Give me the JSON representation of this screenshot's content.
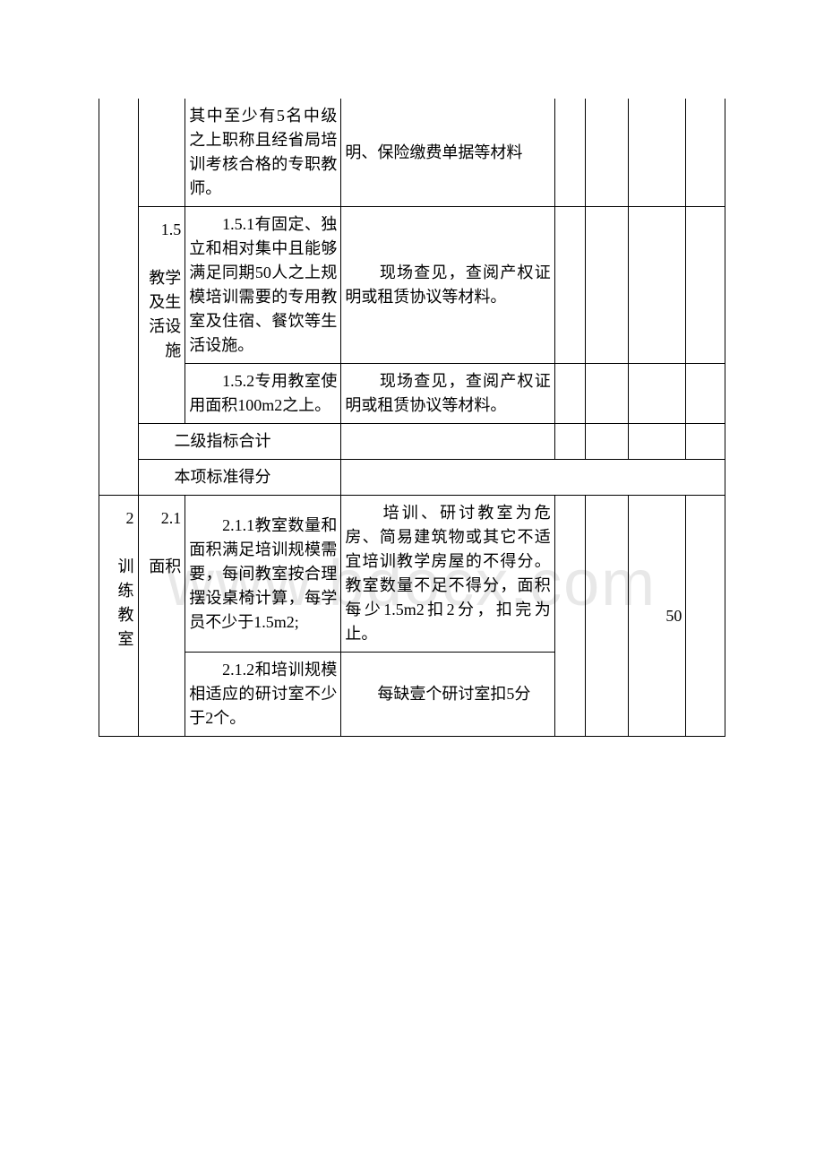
{
  "watermark": "www.bdocx.com",
  "rows": {
    "r1": {
      "c3": "其中至少有5名中级之上职称且经省局培训考核合格的专职教师。",
      "c4": "明、保险缴费单据等材料"
    },
    "r2": {
      "c2_label": "1.5\n　　教学及生活设施",
      "c3": "　　1.5.1有固定、独立和相对集中且能够满足同期50人之上规模培训需要的专用教室及住宿、餐饮等生活设施。",
      "c4": "　　现场查见，查阅产权证明或租赁协议等材料。"
    },
    "r3": {
      "c3": "　　1.5.2专用教室使用面积100m2之上。",
      "c4": "　　现场查见，查阅产权证明或租赁协议等材料。"
    },
    "r4": {
      "label": "　　二级指标合计"
    },
    "r5": {
      "label": "　　本项标准得分"
    },
    "r6": {
      "c1": "2\n　　训练教室",
      "c2": "2.1\n　　面积",
      "c3": "　　2.1.1教室数量和面积满足培训规模需要，每间教室按合理摆设桌椅计算，每学员不少于1.5m2;",
      "c4": "　　培训、研讨教室为危房、简易建筑物或其它不适宜培训教学房屋的不得分。教室数量不足不得分，面积每少1.5m2扣2分，扣完为止。",
      "c7": "50"
    },
    "r7": {
      "c3": "　　2.1.2和培训规模相适应的研讨室不少于2个。",
      "c4": "　　每缺壹个研讨室扣5分"
    }
  },
  "style": {
    "fontsize": 18,
    "border_color": "#000000",
    "text_color": "#000000",
    "watermark_color": "#e8e8e8",
    "background": "#ffffff"
  }
}
